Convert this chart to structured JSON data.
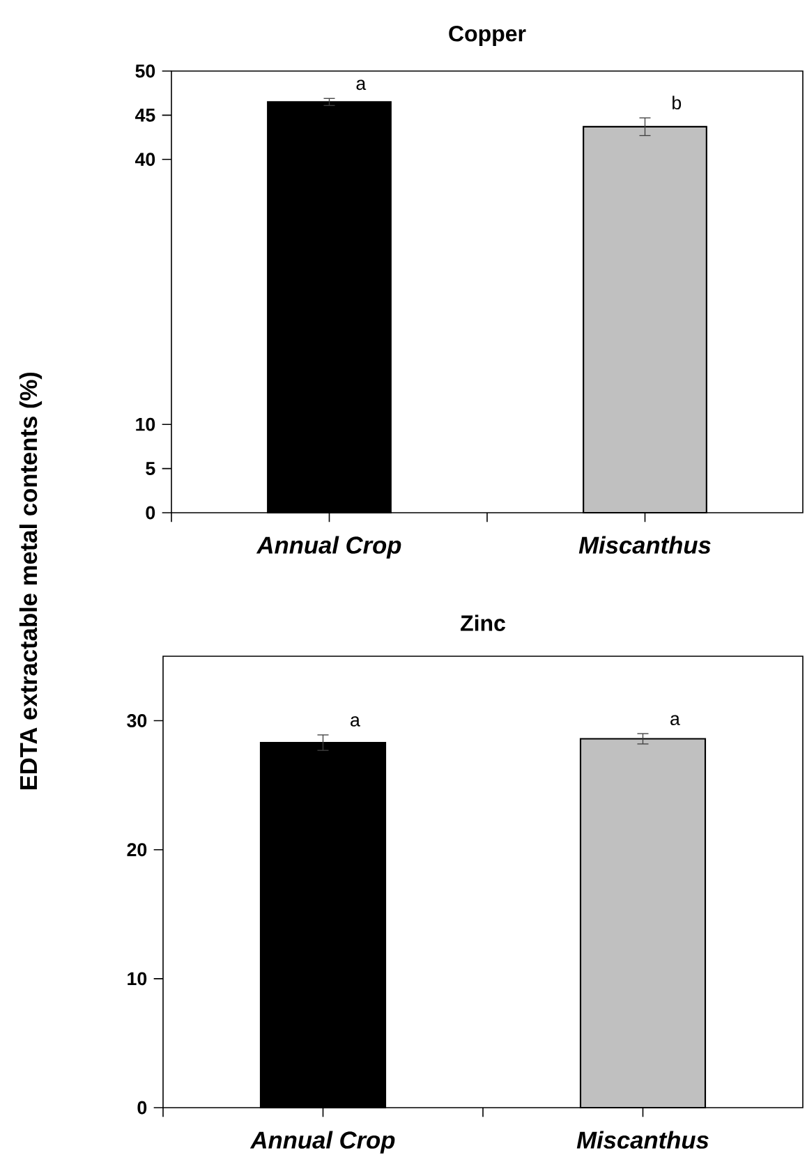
{
  "chart_data": [
    {
      "type": "bar",
      "title": "Copper",
      "ylabel": "EDTA extractable metal contents (%)",
      "categories": [
        "Annual Crop",
        "Miscanthus"
      ],
      "values": [
        46.5,
        43.7
      ],
      "errors": [
        0.4,
        1.0
      ],
      "colors": [
        "#000000",
        "#c0c0c0"
      ],
      "ylim": [
        0,
        50
      ],
      "yticks": [
        0,
        5,
        10,
        40,
        45,
        50
      ],
      "annotations": [
        "a",
        "b"
      ]
    },
    {
      "type": "bar",
      "title": "Zinc",
      "categories": [
        "Annual Crop",
        "Miscanthus"
      ],
      "values": [
        28.3,
        28.6
      ],
      "errors": [
        0.6,
        0.4
      ],
      "colors": [
        "#000000",
        "#c0c0c0"
      ],
      "ylim": [
        0,
        35
      ],
      "yticks": [
        0,
        10,
        20,
        30
      ],
      "annotations": [
        "a",
        "a"
      ]
    }
  ]
}
